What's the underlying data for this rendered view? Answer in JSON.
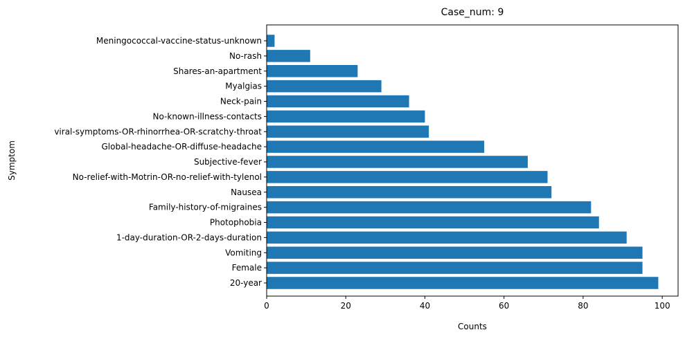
{
  "chart_data": {
    "type": "bar",
    "orientation": "horizontal",
    "title": "Case_num: 9",
    "xlabel": "Counts",
    "ylabel": "Symptom",
    "xlim": [
      0,
      104
    ],
    "x_ticks": [
      0,
      20,
      40,
      60,
      80,
      100
    ],
    "grid": false,
    "bar_color": "#1f77b4",
    "categories": [
      "Meningococcal-vaccine-status-unknown",
      "No-rash",
      "Shares-an-apartment",
      "Myalgias",
      "Neck-pain",
      "No-known-illness-contacts",
      "viral-symptoms-OR-rhinorrhea-OR-scratchy-throat",
      "Global-headache-OR-diffuse-headache",
      "Subjective-fever",
      "No-relief-with-Motrin-OR-no-relief-with-tylenol",
      "Nausea",
      "Family-history-of-migraines",
      "Photophobia",
      "1-day-duration-OR-2-days-duration",
      "Vomiting",
      "Female",
      "20-year"
    ],
    "values": [
      2,
      11,
      23,
      29,
      36,
      40,
      41,
      55,
      66,
      71,
      72,
      82,
      84,
      91,
      95,
      95,
      99
    ]
  }
}
